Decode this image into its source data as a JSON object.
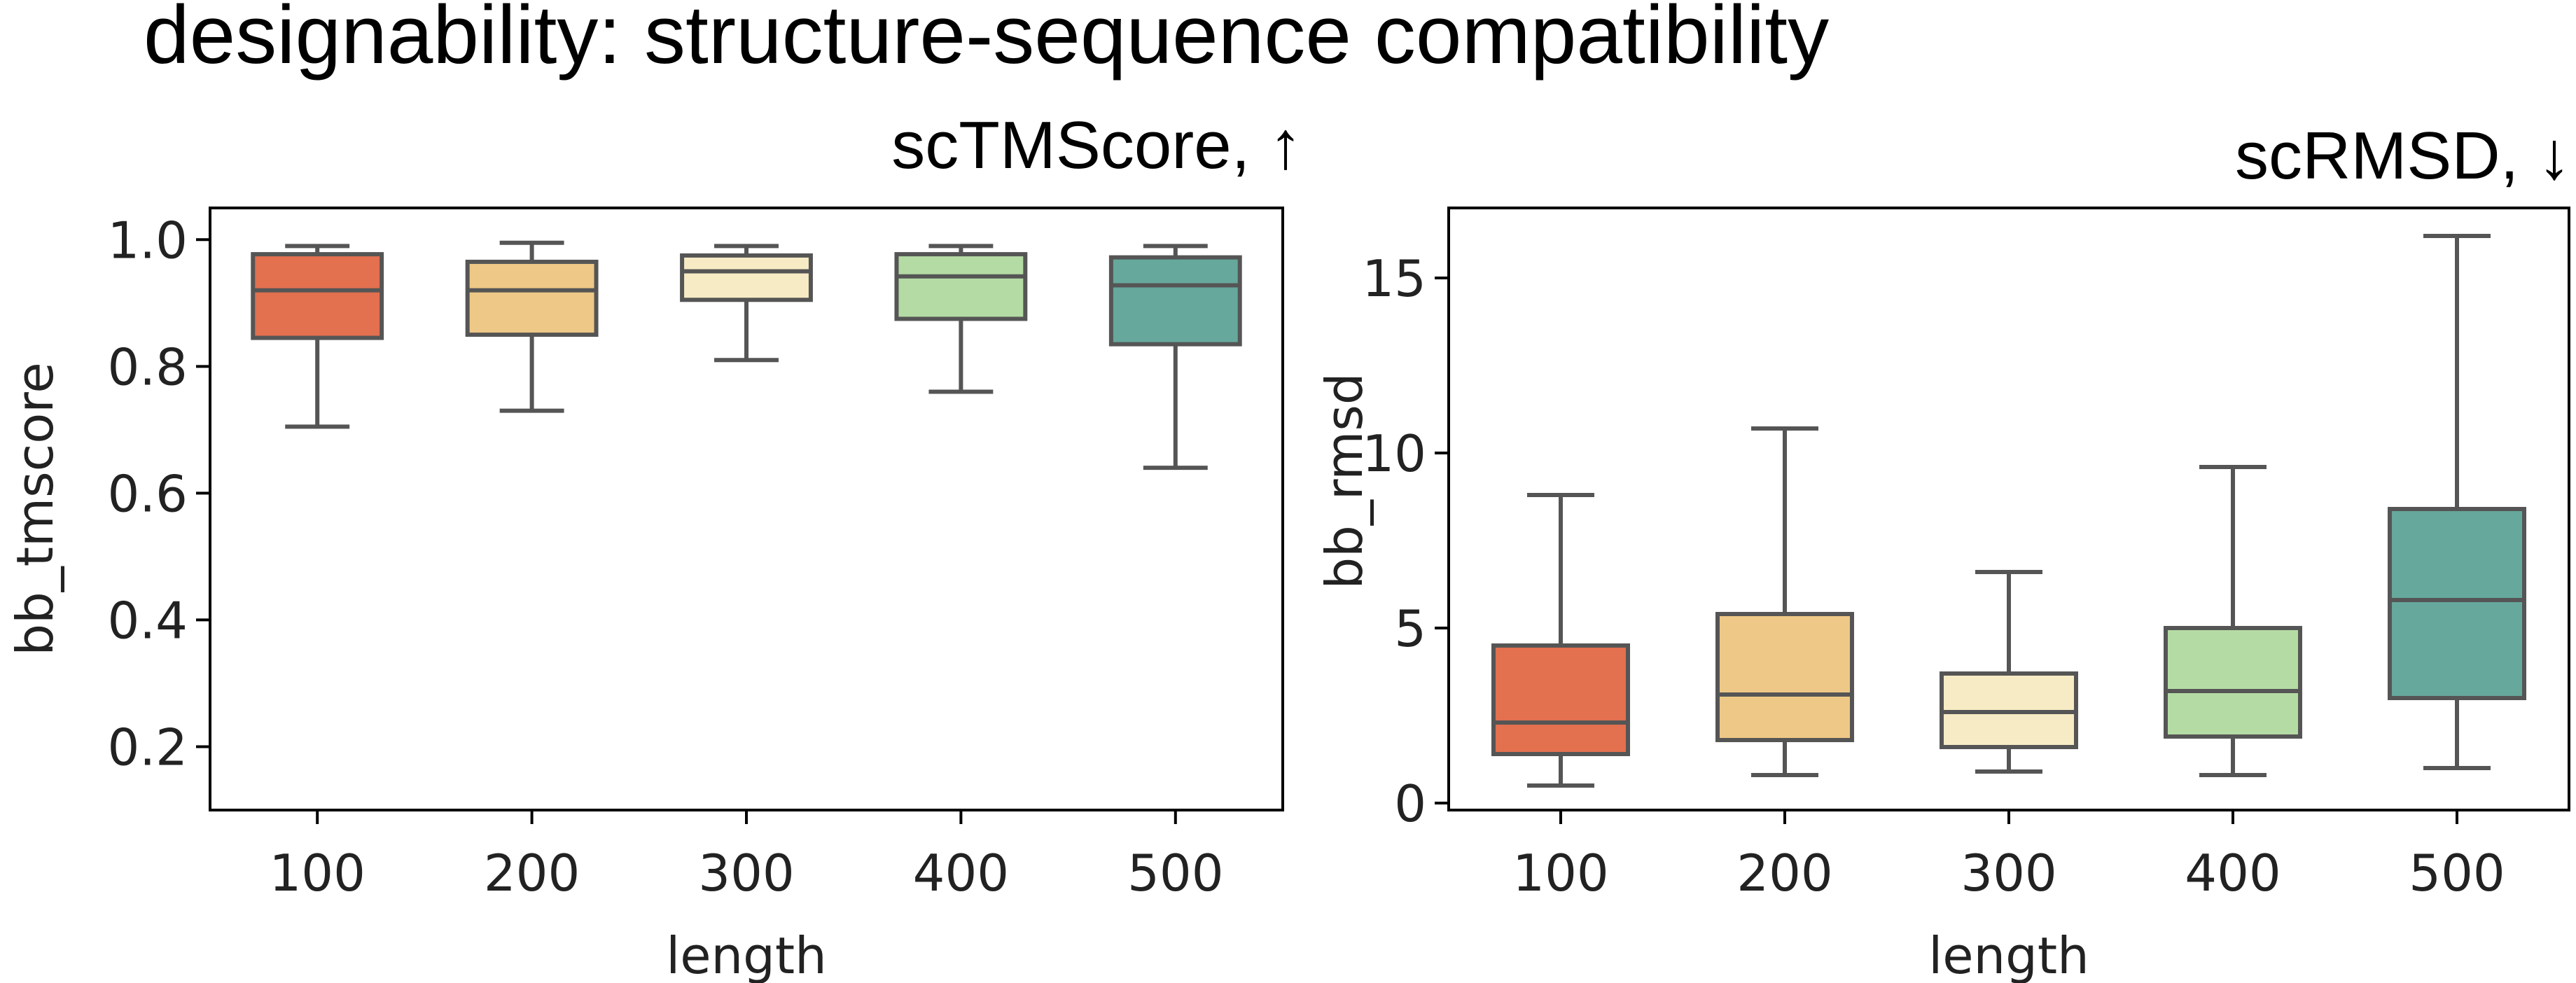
{
  "title": "designability: structure-sequence compatibility",
  "colors": [
    "#e3704f",
    "#eec886",
    "#f7ebc5",
    "#b4dba4",
    "#66a89c"
  ],
  "chart_data": [
    {
      "type": "box",
      "subtitle": "scTMScore, ↑",
      "xlabel": "length",
      "ylabel": "bb_tmscore",
      "categories": [
        "100",
        "200",
        "300",
        "400",
        "500"
      ],
      "ylim": [
        0.1,
        1.05
      ],
      "yticks": [
        0.2,
        0.4,
        0.6,
        0.8,
        1.0
      ],
      "ytick_labels": [
        "0.2",
        "0.4",
        "0.6",
        "0.8",
        "1.0"
      ],
      "boxes": [
        {
          "whislo": 0.705,
          "q1": 0.845,
          "med": 0.92,
          "q3": 0.977,
          "whishi": 0.99
        },
        {
          "whislo": 0.73,
          "q1": 0.85,
          "med": 0.92,
          "q3": 0.965,
          "whishi": 0.995
        },
        {
          "whislo": 0.81,
          "q1": 0.905,
          "med": 0.95,
          "q3": 0.975,
          "whishi": 0.99
        },
        {
          "whislo": 0.76,
          "q1": 0.875,
          "med": 0.942,
          "q3": 0.977,
          "whishi": 0.99
        },
        {
          "whislo": 0.64,
          "q1": 0.835,
          "med": 0.928,
          "q3": 0.972,
          "whishi": 0.99
        }
      ],
      "grid": false
    },
    {
      "type": "box",
      "subtitle": "scRMSD, ↓",
      "xlabel": "length",
      "ylabel": "bb_rmsd",
      "categories": [
        "100",
        "200",
        "300",
        "400",
        "500"
      ],
      "ylim": [
        -0.2,
        17.0
      ],
      "yticks": [
        0,
        5,
        10,
        15
      ],
      "ytick_labels": [
        "0",
        "5",
        "10",
        "15"
      ],
      "boxes": [
        {
          "whislo": 0.5,
          "q1": 1.4,
          "med": 2.3,
          "q3": 4.5,
          "whishi": 8.8
        },
        {
          "whislo": 0.8,
          "q1": 1.8,
          "med": 3.1,
          "q3": 5.4,
          "whishi": 10.7
        },
        {
          "whislo": 0.9,
          "q1": 1.6,
          "med": 2.6,
          "q3": 3.7,
          "whishi": 6.6
        },
        {
          "whislo": 0.8,
          "q1": 1.9,
          "med": 3.2,
          "q3": 5.0,
          "whishi": 9.6
        },
        {
          "whislo": 1.0,
          "q1": 3.0,
          "med": 5.8,
          "q3": 8.4,
          "whishi": 16.2
        }
      ],
      "grid": false
    }
  ]
}
